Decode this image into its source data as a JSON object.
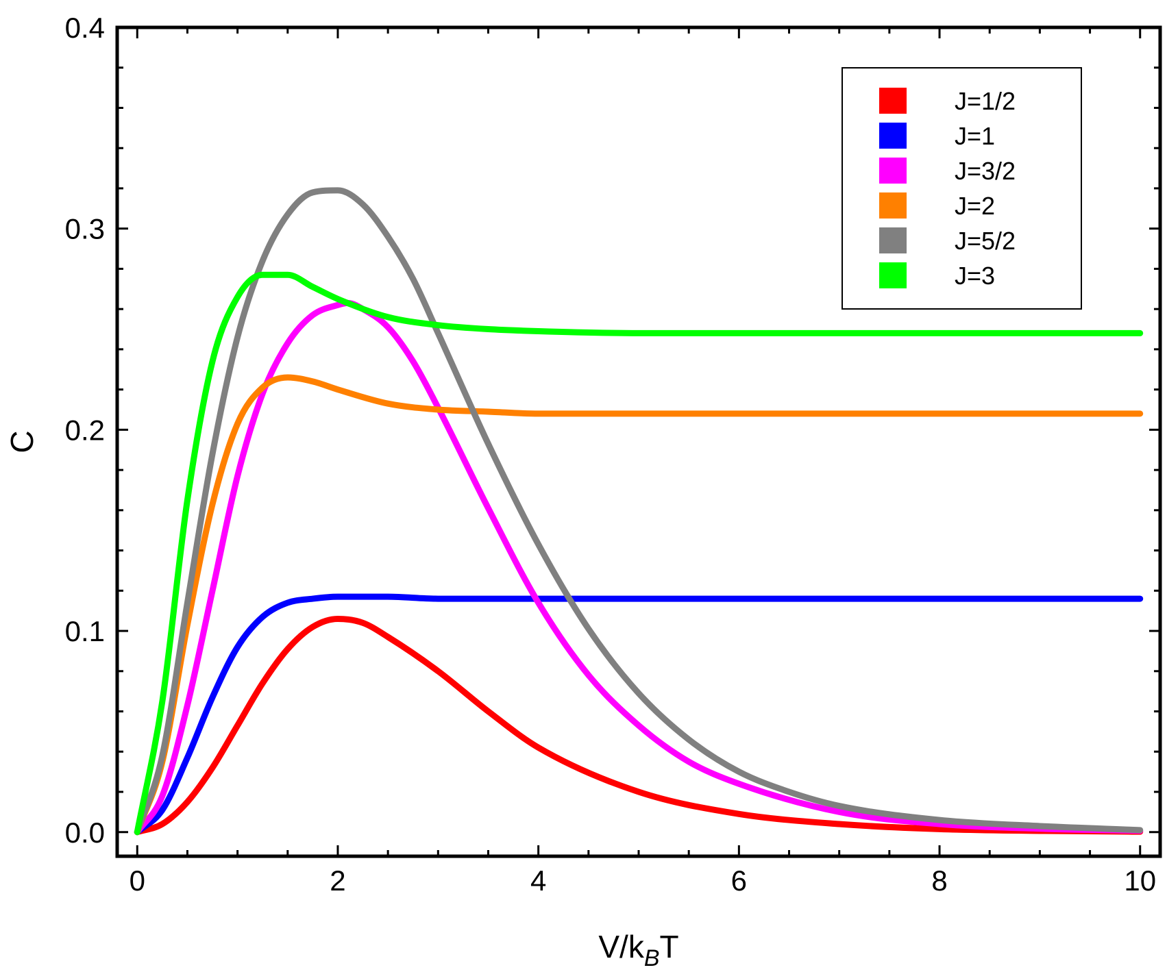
{
  "chart_data": {
    "type": "line",
    "title": "",
    "xlabel": {
      "main": "V/k",
      "sub": "B",
      "tail": "T"
    },
    "ylabel": "C",
    "xlim": [
      -0.2,
      10.2
    ],
    "ylim": [
      -0.012,
      0.4
    ],
    "x_ticks": [
      0,
      2,
      4,
      6,
      8,
      10
    ],
    "x_tick_labels": [
      "0",
      "2",
      "4",
      "6",
      "8",
      "10"
    ],
    "y_ticks": [
      0.0,
      0.1,
      0.2,
      0.3,
      0.4
    ],
    "y_tick_labels": [
      "0.0",
      "0.1",
      "0.2",
      "0.3",
      "0.4"
    ],
    "grid": false,
    "legend_position": "top-right",
    "series": [
      {
        "name": "J=1/2",
        "color": "#ff0000",
        "x": [
          0,
          0.25,
          0.5,
          0.75,
          1,
          1.25,
          1.5,
          1.75,
          2,
          2.25,
          2.5,
          3,
          3.5,
          4,
          5,
          6,
          7,
          8,
          9,
          10
        ],
        "y": [
          0,
          0.004,
          0.015,
          0.032,
          0.053,
          0.074,
          0.091,
          0.102,
          0.106,
          0.104,
          0.097,
          0.08,
          0.06,
          0.042,
          0.02,
          0.009,
          0.004,
          0.0015,
          0.0006,
          0.0002
        ]
      },
      {
        "name": "J=1",
        "color": "#0000ff",
        "x": [
          0,
          0.25,
          0.5,
          0.75,
          1,
          1.25,
          1.5,
          1.75,
          2,
          2.5,
          3,
          4,
          5,
          6,
          8,
          10
        ],
        "y": [
          0,
          0.011,
          0.037,
          0.067,
          0.092,
          0.107,
          0.114,
          0.116,
          0.117,
          0.117,
          0.116,
          0.116,
          0.116,
          0.116,
          0.116,
          0.116
        ]
      },
      {
        "name": "J=3/2",
        "color": "#ff00ff",
        "x": [
          0,
          0.25,
          0.5,
          0.75,
          1,
          1.25,
          1.5,
          1.75,
          2,
          2.1,
          2.25,
          2.5,
          2.75,
          3,
          3.5,
          4,
          4.5,
          5,
          5.5,
          6,
          7,
          8,
          9,
          10
        ],
        "y": [
          0,
          0.018,
          0.063,
          0.12,
          0.177,
          0.218,
          0.243,
          0.257,
          0.262,
          0.263,
          0.26,
          0.251,
          0.234,
          0.211,
          0.161,
          0.114,
          0.078,
          0.053,
          0.035,
          0.024,
          0.01,
          0.004,
          0.0017,
          0.0007
        ]
      },
      {
        "name": "J=2",
        "color": "#ff8000",
        "x": [
          0,
          0.25,
          0.5,
          0.75,
          1,
          1.25,
          1.5,
          1.75,
          2,
          2.5,
          3,
          3.5,
          4,
          5,
          6,
          8,
          10
        ],
        "y": [
          0,
          0.035,
          0.103,
          0.163,
          0.203,
          0.221,
          0.226,
          0.224,
          0.22,
          0.213,
          0.21,
          0.209,
          0.208,
          0.208,
          0.208,
          0.208,
          0.208
        ]
      },
      {
        "name": "J=5/2",
        "color": "#808080",
        "x": [
          0,
          0.25,
          0.5,
          0.75,
          1,
          1.25,
          1.5,
          1.75,
          2,
          2.25,
          2.5,
          2.75,
          3,
          3.5,
          4,
          4.5,
          5,
          5.5,
          6,
          6.5,
          7,
          8,
          9,
          10
        ],
        "y": [
          0,
          0.038,
          0.114,
          0.188,
          0.246,
          0.284,
          0.307,
          0.318,
          0.319,
          0.312,
          0.296,
          0.275,
          0.248,
          0.193,
          0.143,
          0.101,
          0.069,
          0.046,
          0.03,
          0.02,
          0.013,
          0.006,
          0.003,
          0.001
        ]
      },
      {
        "name": "J=3",
        "color": "#00ff00",
        "x": [
          0,
          0.25,
          0.5,
          0.75,
          1,
          1.25,
          1.5,
          1.75,
          2,
          2.5,
          3,
          3.5,
          4,
          5,
          6,
          8,
          10
        ],
        "y": [
          0,
          0.065,
          0.165,
          0.234,
          0.266,
          0.277,
          0.277,
          0.271,
          0.265,
          0.256,
          0.252,
          0.25,
          0.249,
          0.248,
          0.248,
          0.248,
          0.248
        ]
      }
    ]
  }
}
